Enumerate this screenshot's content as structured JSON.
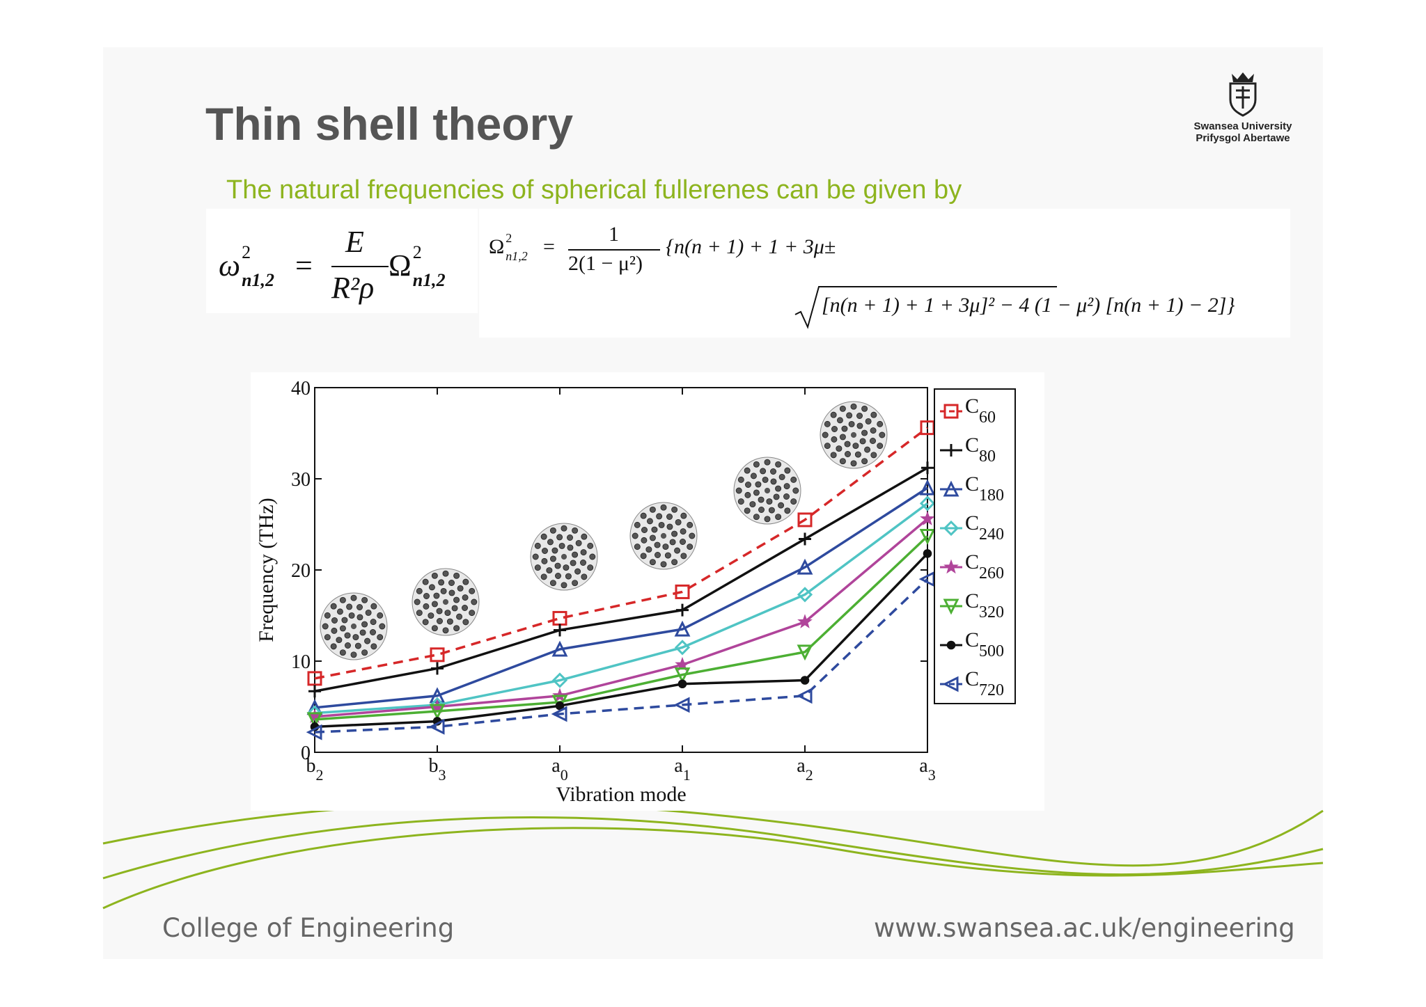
{
  "slide": {
    "title": "Thin shell theory",
    "subtitle": "The natural frequencies of spherical fullerenes can be given by",
    "logo": {
      "icon": "university-crest-icon",
      "line1": "Swansea University",
      "line2": "Prifysgol Abertawe"
    },
    "footer_left": "College of Engineering",
    "footer_right": "www.swansea.ac.uk/engineering",
    "accent_color": "#8db41e"
  },
  "equations": {
    "eq1": {
      "lhs": "ω",
      "lhs_sup": "2",
      "lhs_sub": "n1,2",
      "eq": "=",
      "num": "E",
      "den": "R²ρ",
      "rhs": "Ω",
      "rhs_sup": "2",
      "rhs_sub": "n1,2"
    },
    "eq2": {
      "lhs": "Ω",
      "lhs_sup": "2",
      "lhs_sub": "n1,2",
      "eq": "=",
      "num": "1",
      "den": "2(1 − μ²)",
      "rest": "{n(n + 1) + 1 + 3μ±"
    },
    "eq3": {
      "radicand": "[n(n + 1) + 1 + 3μ]² − 4 (1 − μ²) [n(n + 1) − 2]}"
    }
  },
  "chart_data": {
    "type": "line",
    "xlabel": "Vibration mode",
    "ylabel": "Frequency (THz)",
    "ylim": [
      0,
      40
    ],
    "yticks": [
      "0",
      "10",
      "20",
      "30",
      "40"
    ],
    "categories": [
      {
        "base": "b",
        "sub": "2"
      },
      {
        "base": "b",
        "sub": "3"
      },
      {
        "base": "a",
        "sub": "0"
      },
      {
        "base": "a",
        "sub": "1"
      },
      {
        "base": "a",
        "sub": "2"
      },
      {
        "base": "a",
        "sub": "3"
      }
    ],
    "legend_position": "right",
    "series": [
      {
        "name": "C",
        "sub": "60",
        "color": "#d62728",
        "dash": true,
        "marker": "square",
        "values": [
          8.1,
          10.7,
          14.7,
          17.6,
          25.5,
          35.6
        ]
      },
      {
        "name": "C",
        "sub": "80",
        "color": "#111111",
        "dash": false,
        "marker": "plus",
        "values": [
          6.7,
          9.2,
          13.4,
          15.6,
          23.4,
          31.2
        ]
      },
      {
        "name": "C",
        "sub": "180",
        "color": "#2e4a9e",
        "dash": false,
        "marker": "triangle-up",
        "values": [
          4.9,
          6.2,
          11.3,
          13.5,
          20.3,
          29.0
        ]
      },
      {
        "name": "C",
        "sub": "240",
        "color": "#4fc4c4",
        "dash": false,
        "marker": "diamond",
        "values": [
          4.3,
          5.2,
          7.9,
          11.5,
          17.3,
          27.3
        ]
      },
      {
        "name": "C",
        "sub": "260",
        "color": "#b0449a",
        "dash": false,
        "marker": "star",
        "values": [
          3.9,
          5.0,
          6.2,
          9.6,
          14.3,
          25.6
        ]
      },
      {
        "name": "C",
        "sub": "320",
        "color": "#4caf33",
        "dash": false,
        "marker": "triangle-down",
        "values": [
          3.6,
          4.5,
          5.5,
          8.5,
          11.0,
          23.7
        ]
      },
      {
        "name": "C",
        "sub": "500",
        "color": "#111111",
        "dash": false,
        "marker": "circle",
        "values": [
          2.8,
          3.4,
          5.1,
          7.5,
          7.9,
          21.8
        ]
      },
      {
        "name": "C",
        "sub": "720",
        "color": "#2e4a9e",
        "dash": true,
        "marker": "triangle-left",
        "values": [
          2.2,
          2.8,
          4.2,
          5.2,
          6.2,
          19.0
        ]
      }
    ],
    "insets": [
      "fullerene-image",
      "fullerene-image",
      "fullerene-image",
      "fullerene-image",
      "fullerene-image",
      "fullerene-image"
    ]
  }
}
